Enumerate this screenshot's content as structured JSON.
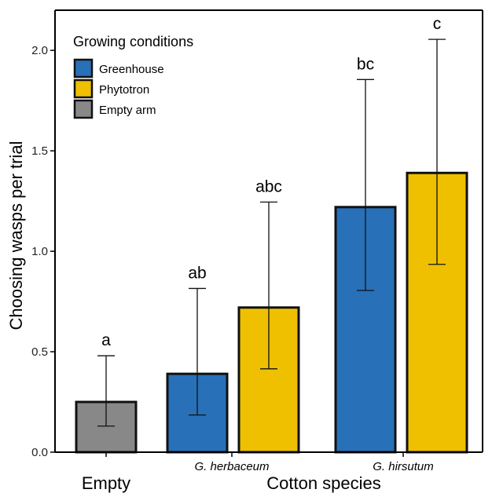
{
  "chart_data": {
    "type": "bar",
    "ylabel": "Choosing wasps per trial",
    "xlabel": "Cotton species",
    "ylim": [
      0,
      2.2
    ],
    "yticks": [
      "0.0",
      "0.5",
      "1.0",
      "1.5",
      "2.0"
    ],
    "ytick_values": [
      0,
      0.5,
      1.0,
      1.5,
      2.0
    ],
    "groups": [
      {
        "label": "Empty",
        "italic": false
      },
      {
        "label": "G. herbaceum",
        "italic": true
      },
      {
        "label": "G. hirsutum",
        "italic": true
      }
    ],
    "legend": {
      "title": "Growing conditions",
      "placement": "top-left",
      "entries": [
        {
          "name": "Greenhouse",
          "color": "#2870B8"
        },
        {
          "name": "Phytotron",
          "color": "#EEC000"
        },
        {
          "name": "Empty arm",
          "color": "#888888"
        }
      ]
    },
    "bars": [
      {
        "group": 0,
        "condition": "Empty arm",
        "value": 0.25,
        "err_low": 0.13,
        "err_high": 0.48,
        "sig": "a"
      },
      {
        "group": 1,
        "condition": "Greenhouse",
        "value": 0.39,
        "err_low": 0.185,
        "err_high": 0.815,
        "sig": "ab"
      },
      {
        "group": 1,
        "condition": "Phytotron",
        "value": 0.72,
        "err_low": 0.415,
        "err_high": 1.245,
        "sig": "abc"
      },
      {
        "group": 2,
        "condition": "Greenhouse",
        "value": 1.22,
        "err_low": 0.805,
        "err_high": 1.855,
        "sig": "bc"
      },
      {
        "group": 2,
        "condition": "Phytotron",
        "value": 1.39,
        "err_low": 0.935,
        "err_high": 2.055,
        "sig": "c"
      }
    ]
  }
}
